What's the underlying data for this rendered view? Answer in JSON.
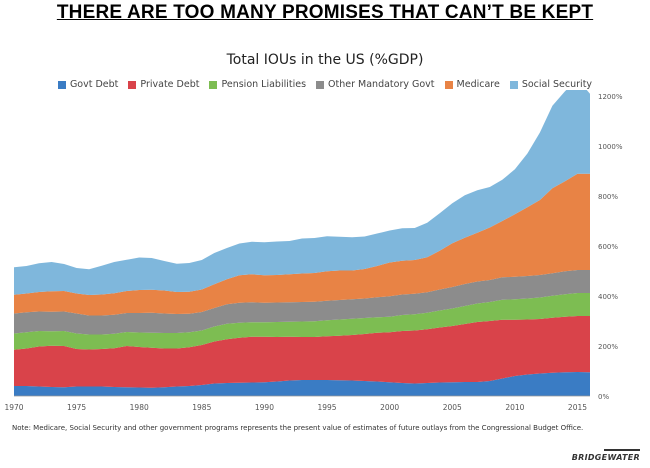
{
  "headline": "THERE ARE TOO MANY PROMISES THAT CAN’T BE KEPT",
  "note": "Note: Medicare, Social Security and other government programs represents the present value of estimates of future outlays from the Congressional Budget Office.",
  "logo": "BRIDGEWATER",
  "chart_data": {
    "type": "area",
    "stacked": true,
    "title": "Total IOUs in the US (%GDP)",
    "xlabel": "",
    "ylabel": "",
    "x": [
      1970,
      1971,
      1972,
      1973,
      1974,
      1975,
      1976,
      1977,
      1978,
      1979,
      1980,
      1981,
      1982,
      1983,
      1984,
      1985,
      1986,
      1987,
      1988,
      1989,
      1990,
      1991,
      1992,
      1993,
      1994,
      1995,
      1996,
      1997,
      1998,
      1999,
      2000,
      2001,
      2002,
      2003,
      2004,
      2005,
      2006,
      2007,
      2008,
      2009,
      2010,
      2011,
      2012,
      2013,
      2014,
      2015,
      2016
    ],
    "xlim": [
      1970,
      2016
    ],
    "ylim": [
      0,
      1200
    ],
    "x_ticks": [
      "1970",
      "1975",
      "1980",
      "1985",
      "1990",
      "1995",
      "2000",
      "2005",
      "2010",
      "2015"
    ],
    "x_tick_values": [
      1970,
      1975,
      1980,
      1985,
      1990,
      1995,
      2000,
      2005,
      2010,
      2015
    ],
    "y_ticks": [
      "0%",
      "200%",
      "400%",
      "600%",
      "800%",
      "1000%",
      "1200%"
    ],
    "y_tick_values": [
      0,
      200,
      400,
      600,
      800,
      1000,
      1200
    ],
    "y_axis_side": "right",
    "grid": false,
    "legend_position": "top",
    "series": [
      {
        "name": "Govt Debt",
        "color": "#3a7cc4",
        "values": [
          40,
          40,
          38,
          36,
          35,
          38,
          38,
          38,
          36,
          35,
          34,
          33,
          35,
          38,
          40,
          44,
          50,
          52,
          53,
          54,
          55,
          58,
          62,
          64,
          64,
          64,
          63,
          62,
          60,
          58,
          55,
          52,
          50,
          52,
          54,
          55,
          56,
          56,
          60,
          70,
          80,
          86,
          90,
          93,
          95,
          96,
          95
        ]
      },
      {
        "name": "Private Debt",
        "color": "#d9434a",
        "values": [
          145,
          150,
          160,
          165,
          165,
          150,
          148,
          150,
          155,
          165,
          162,
          160,
          155,
          152,
          155,
          160,
          168,
          175,
          180,
          183,
          182,
          178,
          175,
          172,
          172,
          175,
          178,
          182,
          188,
          195,
          200,
          208,
          212,
          215,
          220,
          225,
          232,
          240,
          240,
          235,
          225,
          220,
          218,
          220,
          222,
          224,
          225
        ]
      },
      {
        "name": "Pension Liabilities",
        "color": "#7dbd52",
        "values": [
          65,
          65,
          62,
          58,
          60,
          62,
          60,
          58,
          58,
          56,
          58,
          60,
          62,
          62,
          60,
          58,
          60,
          62,
          60,
          58,
          58,
          60,
          60,
          62,
          63,
          64,
          65,
          65,
          64,
          62,
          62,
          64,
          65,
          66,
          68,
          70,
          72,
          74,
          76,
          80,
          82,
          84,
          86,
          88,
          90,
          92,
          92
        ]
      },
      {
        "name": "Other Mandatory Govt",
        "color": "#8c8c8c",
        "values": [
          80,
          80,
          78,
          78,
          78,
          80,
          76,
          76,
          76,
          76,
          78,
          80,
          78,
          76,
          74,
          74,
          74,
          78,
          80,
          80,
          78,
          78,
          78,
          78,
          78,
          78,
          78,
          78,
          78,
          80,
          82,
          82,
          82,
          82,
          84,
          86,
          88,
          88,
          88,
          90,
          90,
          90,
          90,
          90,
          92,
          92,
          92
        ]
      },
      {
        "name": "Medicare",
        "color": "#e88345",
        "values": [
          75,
          75,
          78,
          82,
          82,
          80,
          82,
          84,
          86,
          88,
          92,
          92,
          92,
          88,
          88,
          90,
          95,
          100,
          110,
          112,
          110,
          110,
          112,
          114,
          115,
          118,
          118,
          115,
          118,
          125,
          135,
          135,
          135,
          140,
          155,
          175,
          185,
          195,
          210,
          225,
          250,
          275,
          300,
          340,
          360,
          385,
          385
        ]
      },
      {
        "name": "Social Security",
        "color": "#7fb7dc",
        "values": [
          110,
          110,
          115,
          117,
          108,
          102,
          103,
          115,
          125,
          125,
          130,
          127,
          118,
          113,
          115,
          118,
          125,
          125,
          127,
          130,
          132,
          134,
          133,
          140,
          140,
          140,
          135,
          133,
          130,
          130,
          128,
          130,
          128,
          138,
          150,
          160,
          170,
          170,
          162,
          165,
          180,
          215,
          270,
          330,
          360,
          378,
          320
        ]
      }
    ]
  }
}
